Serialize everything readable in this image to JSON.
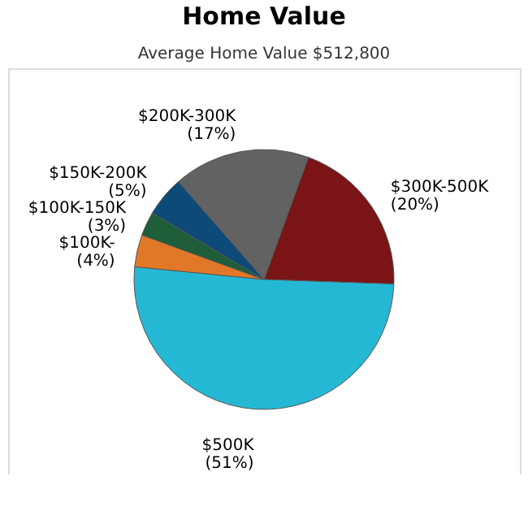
{
  "chart_data": {
    "type": "pie",
    "title": "Home Value",
    "subtitle": "Average Home Value  $512,800",
    "categories": [
      "$300K-500K",
      "$500K",
      "$100K-",
      "$100K-150K",
      "$150K-200K",
      "$200K-300K"
    ],
    "values": [
      20,
      51,
      4,
      3,
      5,
      17
    ],
    "colors": [
      "#7a1416",
      "#25b8d4",
      "#e07828",
      "#1f5e3a",
      "#0d4a78",
      "#626262"
    ],
    "value_labels": [
      "(20%)",
      "(51%)",
      "(4%)",
      "(3%)",
      "(5%)",
      "(17%)"
    ]
  }
}
